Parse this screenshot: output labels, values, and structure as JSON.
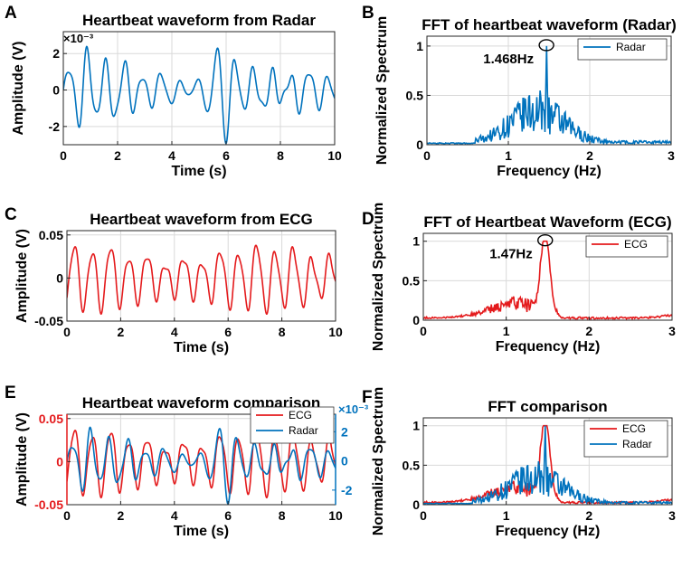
{
  "colors": {
    "radar": "#0072bd",
    "ecg": "#e41a1c",
    "axis": "#262626",
    "grid": "#d9d9d9"
  },
  "chart_data": [
    {
      "id": "A",
      "panel_label": "A",
      "type": "line",
      "title": "Heartbeat waveform from Radar",
      "xlabel": "Time (s)",
      "ylabel": "Amplitude (V)",
      "xlim": [
        0,
        10
      ],
      "ylim": [
        -3,
        3.2
      ],
      "xticks": [
        0,
        2,
        4,
        6,
        8,
        10
      ],
      "xtick_labels": [
        "0",
        "2",
        "4",
        "6",
        "8",
        "10"
      ],
      "yticks": [
        -2,
        0,
        2
      ],
      "ytick_labels": [
        "-2",
        "0",
        "2"
      ],
      "exponent": "×10⁻³",
      "series": [
        {
          "name": "Radar",
          "color": "#0072bd",
          "gen": "radar",
          "scale": 1
        }
      ]
    },
    {
      "id": "B",
      "panel_label": "B",
      "type": "line",
      "title": "FFT of heartbeat waveform (Radar)",
      "xlabel": "Frequency (Hz)",
      "ylabel": "Normalized Spectrum",
      "xlim": [
        0,
        3
      ],
      "ylim": [
        0,
        1.1
      ],
      "xticks": [
        0,
        1,
        2,
        3
      ],
      "xtick_labels": [
        "0",
        "1",
        "2",
        "3"
      ],
      "yticks": [
        0,
        0.5,
        1
      ],
      "ytick_labels": [
        "0",
        "0.5",
        "1"
      ],
      "legend": [
        "Radar"
      ],
      "annotation": {
        "text": "1.468Hz",
        "peak_x": 1.468,
        "peak_y": 1
      },
      "series": [
        {
          "name": "Radar",
          "color": "#0072bd",
          "gen": "fft_radar"
        }
      ]
    },
    {
      "id": "C",
      "panel_label": "C",
      "type": "line",
      "title": "Heartbeat waveform from ECG",
      "xlabel": "Time (s)",
      "ylabel": "Amplitude (V)",
      "xlim": [
        0,
        10
      ],
      "ylim": [
        -0.05,
        0.055
      ],
      "xticks": [
        0,
        2,
        4,
        6,
        8,
        10
      ],
      "xtick_labels": [
        "0",
        "2",
        "4",
        "6",
        "8",
        "10"
      ],
      "yticks": [
        -0.05,
        0,
        0.05
      ],
      "ytick_labels": [
        "-0.05",
        "0",
        "0.05"
      ],
      "series": [
        {
          "name": "ECG",
          "color": "#e41a1c",
          "gen": "ecg",
          "scale": 1
        }
      ]
    },
    {
      "id": "D",
      "panel_label": "D",
      "type": "line",
      "title": "FFT of Heartbeat Waveform (ECG)",
      "xlabel": "Frequency (Hz)",
      "ylabel": "Normalized Spectrum",
      "xlim": [
        0,
        3
      ],
      "ylim": [
        0,
        1.1
      ],
      "xticks": [
        0,
        1,
        2,
        3
      ],
      "xtick_labels": [
        "0",
        "1",
        "2",
        "3"
      ],
      "yticks": [
        0,
        0.5,
        1
      ],
      "ytick_labels": [
        "0",
        "0.5",
        "1"
      ],
      "legend": [
        "ECG"
      ],
      "annotation": {
        "text": "1.47Hz",
        "peak_x": 1.47,
        "peak_y": 1
      },
      "series": [
        {
          "name": "ECG",
          "color": "#e41a1c",
          "gen": "fft_ecg"
        }
      ]
    },
    {
      "id": "E",
      "panel_label": "E",
      "type": "line",
      "title": "Heartbeat waveform comparison",
      "xlabel": "Time (s)",
      "ylabel": "Amplitude (V)",
      "xlim": [
        0,
        10
      ],
      "ylim": [
        -0.05,
        0.055
      ],
      "xticks": [
        0,
        2,
        4,
        6,
        8,
        10
      ],
      "xtick_labels": [
        "0",
        "2",
        "4",
        "6",
        "8",
        "10"
      ],
      "yticks": [
        -0.05,
        0,
        0.05
      ],
      "ytick_labels": [
        "-0.05",
        "0",
        "0.05"
      ],
      "right_axis": {
        "ylim": [
          -3,
          3.2
        ],
        "yticks": [
          -2,
          0,
          2
        ],
        "ytick_labels": [
          "-2",
          "0",
          "2"
        ],
        "exponent": "×10⁻³"
      },
      "legend": [
        "ECG",
        "Radar"
      ],
      "series": [
        {
          "name": "ECG",
          "color": "#e41a1c",
          "gen": "ecg",
          "scale": 1
        },
        {
          "name": "Radar",
          "color": "#0072bd",
          "gen": "radar",
          "scale": 0.0167
        }
      ]
    },
    {
      "id": "F",
      "panel_label": "F",
      "type": "line",
      "title": "FFT comparison",
      "xlabel": "Frequency (Hz)",
      "ylabel": "Normalized Spectrum",
      "xlim": [
        0,
        3
      ],
      "ylim": [
        0,
        1.1
      ],
      "xticks": [
        0,
        1,
        2,
        3
      ],
      "xtick_labels": [
        "0",
        "1",
        "2",
        "3"
      ],
      "yticks": [
        0,
        0.5,
        1
      ],
      "ytick_labels": [
        "0",
        "0.5",
        "1"
      ],
      "legend": [
        "ECG",
        "Radar"
      ],
      "series": [
        {
          "name": "ECG",
          "color": "#e41a1c",
          "gen": "fft_ecg"
        },
        {
          "name": "Radar",
          "color": "#0072bd",
          "gen": "fft_radar"
        }
      ]
    }
  ]
}
